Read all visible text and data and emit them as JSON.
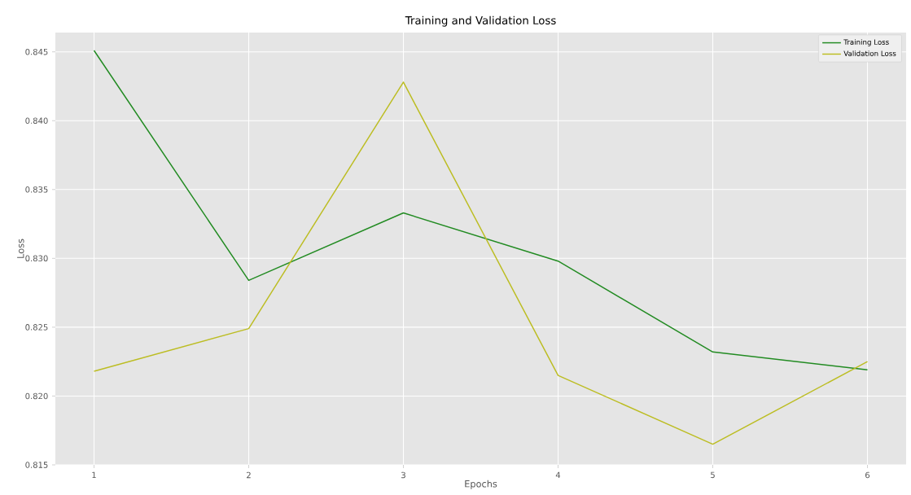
{
  "chart_data": {
    "type": "line",
    "title": "Training and Validation Loss",
    "xlabel": "Epochs",
    "ylabel": "Loss",
    "x": [
      1,
      2,
      3,
      4,
      5,
      6
    ],
    "series": [
      {
        "name": "Training Loss",
        "color": "#228b22",
        "values": [
          0.8451,
          0.8284,
          0.8333,
          0.8298,
          0.8232,
          0.8219
        ]
      },
      {
        "name": "Validation Loss",
        "color": "#bcbd22",
        "values": [
          0.8218,
          0.8249,
          0.8428,
          0.8215,
          0.8165,
          0.8225
        ]
      }
    ],
    "xlim": [
      0.75,
      6.25
    ],
    "ylim": [
      0.815,
      0.8464
    ],
    "xticks": [
      1,
      2,
      3,
      4,
      5,
      6
    ],
    "yticks": [
      0.815,
      {
        "value": 0.82,
        "label": "0.820"
      },
      0.825,
      {
        "value": 0.83,
        "label": "0.830"
      },
      0.835,
      {
        "value": 0.84,
        "label": "0.840"
      },
      0.845
    ],
    "grid": true,
    "legend": "top right",
    "marker": "none",
    "line_style": "solid"
  }
}
